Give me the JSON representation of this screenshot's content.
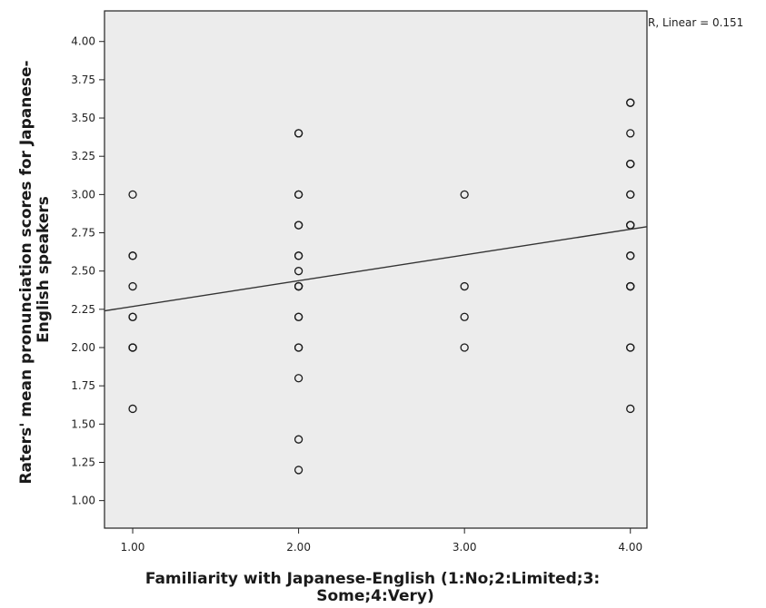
{
  "chart_data": {
    "type": "scatter",
    "title": "",
    "xlabel_lines": [
      "Familiarity with Japanese-English (1:No;2:Limited;3:",
      "Some;4:Very)"
    ],
    "ylabel_lines": [
      "Raters' mean pronunciation scores for Japanese-",
      "English speakers"
    ],
    "xlim": [
      0.83,
      4.1
    ],
    "ylim": [
      0.82,
      4.2
    ],
    "x_ticks": [
      1,
      2,
      3,
      4
    ],
    "x_tick_labels": [
      "1.00",
      "2.00",
      "3.00",
      "4.00"
    ],
    "y_ticks": [
      1.0,
      1.25,
      1.5,
      1.75,
      2.0,
      2.25,
      2.5,
      2.75,
      3.0,
      3.25,
      3.5,
      3.75,
      4.0
    ],
    "y_tick_labels": [
      "1.00",
      "1.25",
      "1.50",
      "1.75",
      "2.00",
      "2.25",
      "2.50",
      "2.75",
      "3.00",
      "3.25",
      "3.50",
      "3.75",
      "4.00"
    ],
    "grid": false,
    "plot_background": "#ececec",
    "marker": "open-circle",
    "points": [
      {
        "x": 1,
        "y": 3.0
      },
      {
        "x": 1,
        "y": 2.6
      },
      {
        "x": 1,
        "y": 2.6
      },
      {
        "x": 1,
        "y": 2.4
      },
      {
        "x": 1,
        "y": 2.2
      },
      {
        "x": 1,
        "y": 2.2
      },
      {
        "x": 1,
        "y": 2.0
      },
      {
        "x": 1,
        "y": 2.0
      },
      {
        "x": 1,
        "y": 2.0
      },
      {
        "x": 1,
        "y": 1.6
      },
      {
        "x": 2,
        "y": 3.4
      },
      {
        "x": 2,
        "y": 3.4
      },
      {
        "x": 2,
        "y": 3.0
      },
      {
        "x": 2,
        "y": 3.0
      },
      {
        "x": 2,
        "y": 2.8
      },
      {
        "x": 2,
        "y": 2.8
      },
      {
        "x": 2,
        "y": 2.6
      },
      {
        "x": 2,
        "y": 2.6
      },
      {
        "x": 2,
        "y": 2.5
      },
      {
        "x": 2,
        "y": 2.4
      },
      {
        "x": 2,
        "y": 2.4
      },
      {
        "x": 2,
        "y": 2.4
      },
      {
        "x": 2,
        "y": 2.2
      },
      {
        "x": 2,
        "y": 2.2
      },
      {
        "x": 2,
        "y": 2.0
      },
      {
        "x": 2,
        "y": 2.0
      },
      {
        "x": 2,
        "y": 1.8
      },
      {
        "x": 2,
        "y": 1.4
      },
      {
        "x": 2,
        "y": 1.2
      },
      {
        "x": 3,
        "y": 3.0
      },
      {
        "x": 3,
        "y": 2.4
      },
      {
        "x": 3,
        "y": 2.2
      },
      {
        "x": 3,
        "y": 2.0
      },
      {
        "x": 4,
        "y": 3.6
      },
      {
        "x": 4,
        "y": 3.6
      },
      {
        "x": 4,
        "y": 3.4
      },
      {
        "x": 4,
        "y": 3.2
      },
      {
        "x": 4,
        "y": 3.2
      },
      {
        "x": 4,
        "y": 3.2
      },
      {
        "x": 4,
        "y": 3.0
      },
      {
        "x": 4,
        "y": 3.0
      },
      {
        "x": 4,
        "y": 2.8
      },
      {
        "x": 4,
        "y": 2.8
      },
      {
        "x": 4,
        "y": 2.8
      },
      {
        "x": 4,
        "y": 2.6
      },
      {
        "x": 4,
        "y": 2.6
      },
      {
        "x": 4,
        "y": 2.4
      },
      {
        "x": 4,
        "y": 2.4
      },
      {
        "x": 4,
        "y": 2.4
      },
      {
        "x": 4,
        "y": 2.0
      },
      {
        "x": 4,
        "y": 2.0
      },
      {
        "x": 4,
        "y": 1.6
      }
    ],
    "fit_line": {
      "type": "linear",
      "label": "R, Linear = 0.151",
      "start": {
        "x": 0.83,
        "y": 2.24
      },
      "end": {
        "x": 4.1,
        "y": 2.79
      }
    }
  }
}
